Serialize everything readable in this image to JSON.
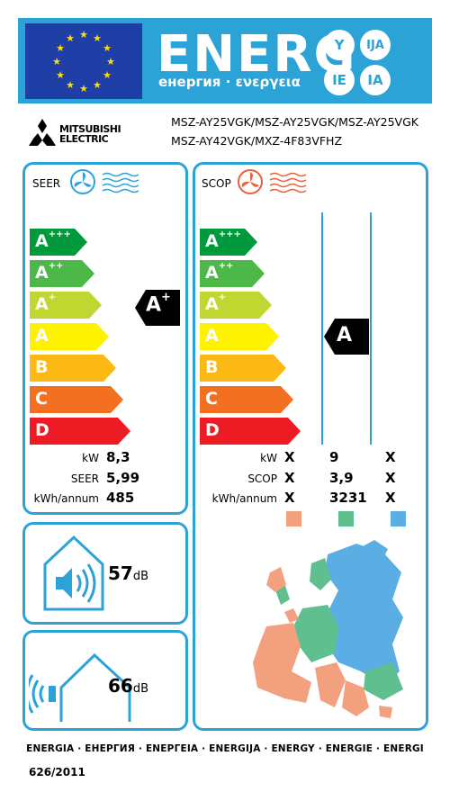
{
  "header": {
    "title": "ENERG",
    "subtitle": "енергия · ενεργεια",
    "lang_codes": [
      "Y",
      "IJA",
      "IE",
      "IA"
    ]
  },
  "brand": {
    "line1": "MITSUBISHI",
    "line2": "ELECTRIC"
  },
  "models": {
    "line1": "MSZ-AY25VGK/MSZ-AY25VGK/MSZ-AY25VGK",
    "line2": "MSZ-AY42VGK/MXZ-4F83VFHZ"
  },
  "seer": {
    "title": "SEER",
    "rating": "A",
    "rating_sup": "+",
    "classes": [
      {
        "letter": "A",
        "sup": "+++",
        "color": "#009a3d"
      },
      {
        "letter": "A",
        "sup": "++",
        "color": "#4cb848"
      },
      {
        "letter": "A",
        "sup": "+",
        "color": "#bfd730"
      },
      {
        "letter": "A",
        "sup": "",
        "color": "#fff200"
      },
      {
        "letter": "B",
        "sup": "",
        "color": "#fdb913"
      },
      {
        "letter": "C",
        "sup": "",
        "color": "#f37021"
      },
      {
        "letter": "D",
        "sup": "",
        "color": "#ed1c24"
      }
    ],
    "rows": [
      {
        "label": "kW",
        "value": "8,3"
      },
      {
        "label": "SEER",
        "value": "5,99"
      },
      {
        "label": "kWh/annum",
        "value": "485"
      }
    ]
  },
  "scop": {
    "title": "SCOP",
    "rating": "A",
    "classes": [
      {
        "letter": "A",
        "sup": "+++",
        "color": "#009a3d"
      },
      {
        "letter": "A",
        "sup": "++",
        "color": "#4cb848"
      },
      {
        "letter": "A",
        "sup": "+",
        "color": "#bfd730"
      },
      {
        "letter": "A",
        "sup": "",
        "color": "#fff200"
      },
      {
        "letter": "B",
        "sup": "",
        "color": "#fdb913"
      },
      {
        "letter": "C",
        "sup": "",
        "color": "#f37021"
      },
      {
        "letter": "D",
        "sup": "",
        "color": "#ed1c24"
      }
    ],
    "rows": [
      {
        "label": "kW",
        "values": [
          "X",
          "9",
          "X"
        ]
      },
      {
        "label": "SCOP",
        "values": [
          "X",
          "3,9",
          "X"
        ]
      },
      {
        "label": "kWh/annum",
        "values": [
          "X",
          "3231",
          "X"
        ]
      }
    ],
    "zone_colors": [
      "#f2a07e",
      "#5fbf8f",
      "#5aaee3"
    ]
  },
  "noise_indoor": {
    "value": "57",
    "unit": "dB"
  },
  "noise_outdoor": {
    "value": "66",
    "unit": "dB"
  },
  "footer": {
    "energy_words": "ENERGIA · ЕНЕРГИЯ · ΕΝΕΡΓΕΙΑ · ENERGIJA · ENERGY · ENERGIE · ENERGI",
    "regulation": "626/2011"
  }
}
